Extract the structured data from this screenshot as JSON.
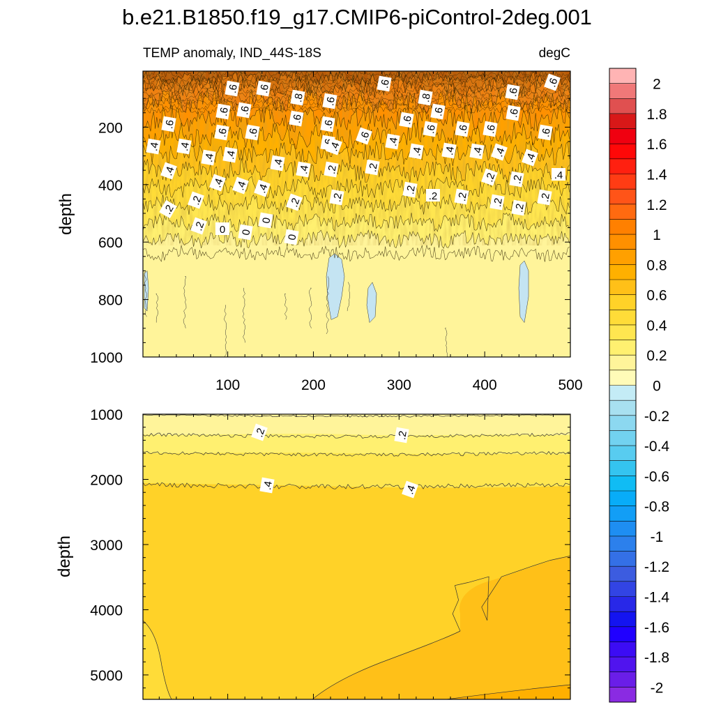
{
  "chart_data": {
    "type": "heatmap",
    "title": "b.e21.B1850.f19_g17.CMIP6-piControl-2deg.001",
    "subtitle_left": "TEMP anomaly, IND_44S-18S",
    "subtitle_right": "degC",
    "colorbar": {
      "levels": [
        -2.1,
        -2,
        -1.9,
        -1.8,
        -1.7,
        -1.6,
        -1.5,
        -1.4,
        -1.3,
        -1.2,
        -1.1,
        -1,
        -0.9,
        -0.8,
        -0.7,
        -0.6,
        -0.5,
        -0.4,
        -0.3,
        -0.2,
        -0.1,
        0,
        0.1,
        0.2,
        0.3,
        0.4,
        0.5,
        0.6,
        0.7,
        0.8,
        0.9,
        1,
        1.1,
        1.2,
        1.3,
        1.4,
        1.5,
        1.6,
        1.7,
        1.8,
        1.9,
        2,
        2.1
      ],
      "colors": [
        "#8a2be2",
        "#6a1ee8",
        "#5014ee",
        "#3c0cf4",
        "#2000ff",
        "#1414f0",
        "#2828e8",
        "#3244e4",
        "#3c5ce0",
        "#3470e6",
        "#2c80ec",
        "#1e8ef2",
        "#129ef6",
        "#08acf8",
        "#10bcf4",
        "#34c4f0",
        "#58ccf0",
        "#72d2f0",
        "#8cd8f0",
        "#a8e0f0",
        "#c4ecf6",
        "#fffbb8",
        "#fff49a",
        "#fff070",
        "#ffe650",
        "#ffdc38",
        "#ffd228",
        "#ffc018",
        "#ffb000",
        "#ffa000",
        "#ff9000",
        "#ff8000",
        "#ff6a10",
        "#ff5418",
        "#ff3c14",
        "#ff2010",
        "#ff0808",
        "#f00010",
        "#d81818",
        "#e05050",
        "#f07878",
        "#ffb4b4"
      ],
      "tick_labels": [
        "2",
        "1.8",
        "1.6",
        "1.4",
        "1.2",
        "1",
        "0.8",
        "0.6",
        "0.4",
        "0.2",
        "0",
        "-0.2",
        "-0.4",
        "-0.6",
        "-0.8",
        "-1",
        "-1.2",
        "-1.4",
        "-1.6",
        "-1.8",
        "-2"
      ]
    },
    "upper_panel": {
      "ylabel": "depth",
      "xlim": [
        1,
        500
      ],
      "ylim": [
        1000,
        5
      ],
      "x_ticks": [
        "100",
        "200",
        "300",
        "400",
        "500"
      ],
      "y_ticks": [
        "200",
        "400",
        "600",
        "800",
        "1000"
      ],
      "contour_labels": [
        ".6",
        ".6",
        ".8",
        ".6",
        ".6",
        ".8",
        ".6",
        ".6",
        ".6",
        ".6",
        ".6",
        ".6",
        ".6",
        ".6",
        ".6",
        ".6",
        ".6",
        ".6",
        ".6",
        ".6",
        ".6",
        ".6",
        ".6",
        ".6",
        ".4",
        ".4",
        ".4",
        ".4",
        ".4",
        ".4",
        ".4",
        ".4",
        ".4",
        ".4",
        ".4",
        ".4",
        ".4",
        ".4",
        ".4",
        ".4",
        ".4",
        ".4",
        ".2",
        ".2",
        ".2",
        ".2",
        ".2",
        ".2",
        ".2",
        ".2",
        ".2",
        ".2",
        ".2",
        ".2",
        ".2",
        ".2",
        ".2",
        "0",
        "0",
        "0",
        "0"
      ]
    },
    "lower_panel": {
      "ylabel": "depth",
      "xlim": [
        1,
        500
      ],
      "ylim": [
        5375,
        1000
      ],
      "y_ticks": [
        "1000",
        "2000",
        "3000",
        "4000",
        "5000"
      ],
      "contour_labels": [
        ".2",
        ".2",
        ".4",
        ".4"
      ]
    }
  }
}
